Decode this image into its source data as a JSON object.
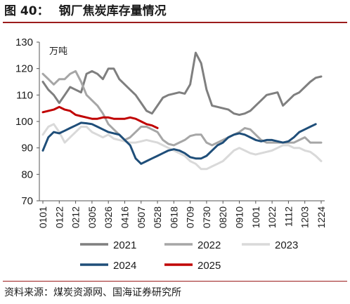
{
  "figure": {
    "label": "图 40：",
    "title": "钢厂焦炭库存量情况",
    "source": "资料来源：煤炭资源网、国海证券研究所"
  },
  "chart_data": {
    "type": "line",
    "unit_label": "万吨",
    "ylim": [
      70,
      130
    ],
    "yticks": [
      70,
      80,
      90,
      100,
      110,
      120,
      130
    ],
    "x": [
      "0101",
      "0108",
      "0115",
      "0122",
      "0129",
      "0205",
      "0212",
      "0219",
      "0226",
      "0305",
      "0312",
      "0319",
      "0326",
      "0402",
      "0409",
      "0416",
      "0423",
      "0430",
      "0507",
      "0514",
      "0521",
      "0528",
      "0604",
      "0611",
      "0618",
      "0625",
      "0702",
      "0709",
      "0716",
      "0723",
      "0730",
      "0806",
      "0813",
      "0820",
      "0827",
      "0903",
      "0910",
      "0917",
      "0924",
      "1001",
      "1008",
      "1015",
      "1022",
      "1029",
      "1105",
      "1112",
      "1119",
      "1126",
      "1203",
      "1210",
      "1217",
      "1224"
    ],
    "xtick_labels": [
      "0101",
      "0122",
      "0212",
      "0305",
      "0326",
      "0416",
      "0507",
      "0528",
      "0618",
      "0709",
      "0730",
      "0820",
      "0910",
      "1001",
      "1022",
      "1112",
      "1203",
      "1224"
    ],
    "grid": false,
    "legend_position": "bottom",
    "series": [
      {
        "name": "2021",
        "color": "#7f7f7f",
        "values": [
          115,
          112,
          110,
          107,
          110,
          113,
          112,
          111,
          118,
          119,
          118,
          116,
          120,
          120,
          116,
          114,
          112,
          110,
          107,
          104,
          103,
          106,
          109,
          110,
          110.5,
          111,
          110.5,
          114,
          126,
          122,
          112,
          106,
          105.5,
          105,
          104.5,
          103,
          102.5,
          103,
          104,
          106,
          108,
          110,
          110.5,
          111,
          106,
          108,
          110,
          111,
          113,
          115,
          116.5,
          117
        ]
      },
      {
        "name": "2022",
        "color": "#a6a6a6",
        "values": [
          118,
          116,
          114,
          116,
          116,
          118,
          119,
          115,
          110,
          108,
          106,
          103,
          99,
          97,
          95,
          93,
          94,
          96,
          98,
          98,
          97,
          96,
          93,
          91.5,
          91,
          92,
          93,
          94.5,
          95,
          95,
          92,
          91,
          92,
          93,
          94,
          95,
          96,
          97.5,
          97,
          95,
          93,
          92,
          92,
          92,
          92,
          92,
          92,
          93,
          94,
          92,
          92,
          92
        ]
      },
      {
        "name": "2023",
        "color": "#d9d9d9",
        "values": [
          95,
          98,
          99,
          96,
          92,
          94,
          96,
          98,
          98,
          96,
          95,
          94,
          95,
          93.5,
          93,
          92.5,
          92,
          92,
          92.5,
          93,
          92.5,
          92,
          91,
          90,
          89,
          88,
          87,
          85,
          84,
          82,
          82,
          83,
          84,
          85,
          87,
          89,
          90,
          89,
          88,
          87.5,
          88,
          88.5,
          89,
          90,
          91,
          91,
          90,
          90,
          89,
          88.5,
          87,
          85
        ]
      },
      {
        "name": "2024",
        "color": "#1f4e79",
        "values": [
          89,
          94,
          96,
          95.5,
          96.5,
          97.5,
          98.5,
          99.5,
          99.3,
          99,
          98,
          97,
          96,
          95.5,
          95,
          93,
          91,
          86,
          84,
          85,
          86,
          87,
          88,
          89,
          89.5,
          89,
          88,
          86.5,
          86,
          86,
          87,
          89,
          91,
          92,
          94,
          95,
          95.5,
          95,
          94,
          93,
          92.5,
          93,
          93,
          92.5,
          92,
          92.5,
          94,
          96,
          97,
          98,
          99,
          null
        ]
      },
      {
        "name": "2025",
        "color": "#c00000",
        "values": [
          103.5,
          104,
          104.5,
          105.5,
          104.5,
          104,
          102.5,
          102,
          101.5,
          101,
          101,
          101.5,
          101.5,
          101,
          101,
          101,
          101.5,
          101,
          100,
          99,
          98.5,
          97.5,
          null,
          null,
          null,
          null,
          null,
          null,
          null,
          null,
          null,
          null,
          null,
          null,
          null,
          null,
          null,
          null,
          null,
          null,
          null,
          null,
          null,
          null,
          null,
          null,
          null,
          null,
          null,
          null,
          null,
          null
        ]
      }
    ]
  }
}
